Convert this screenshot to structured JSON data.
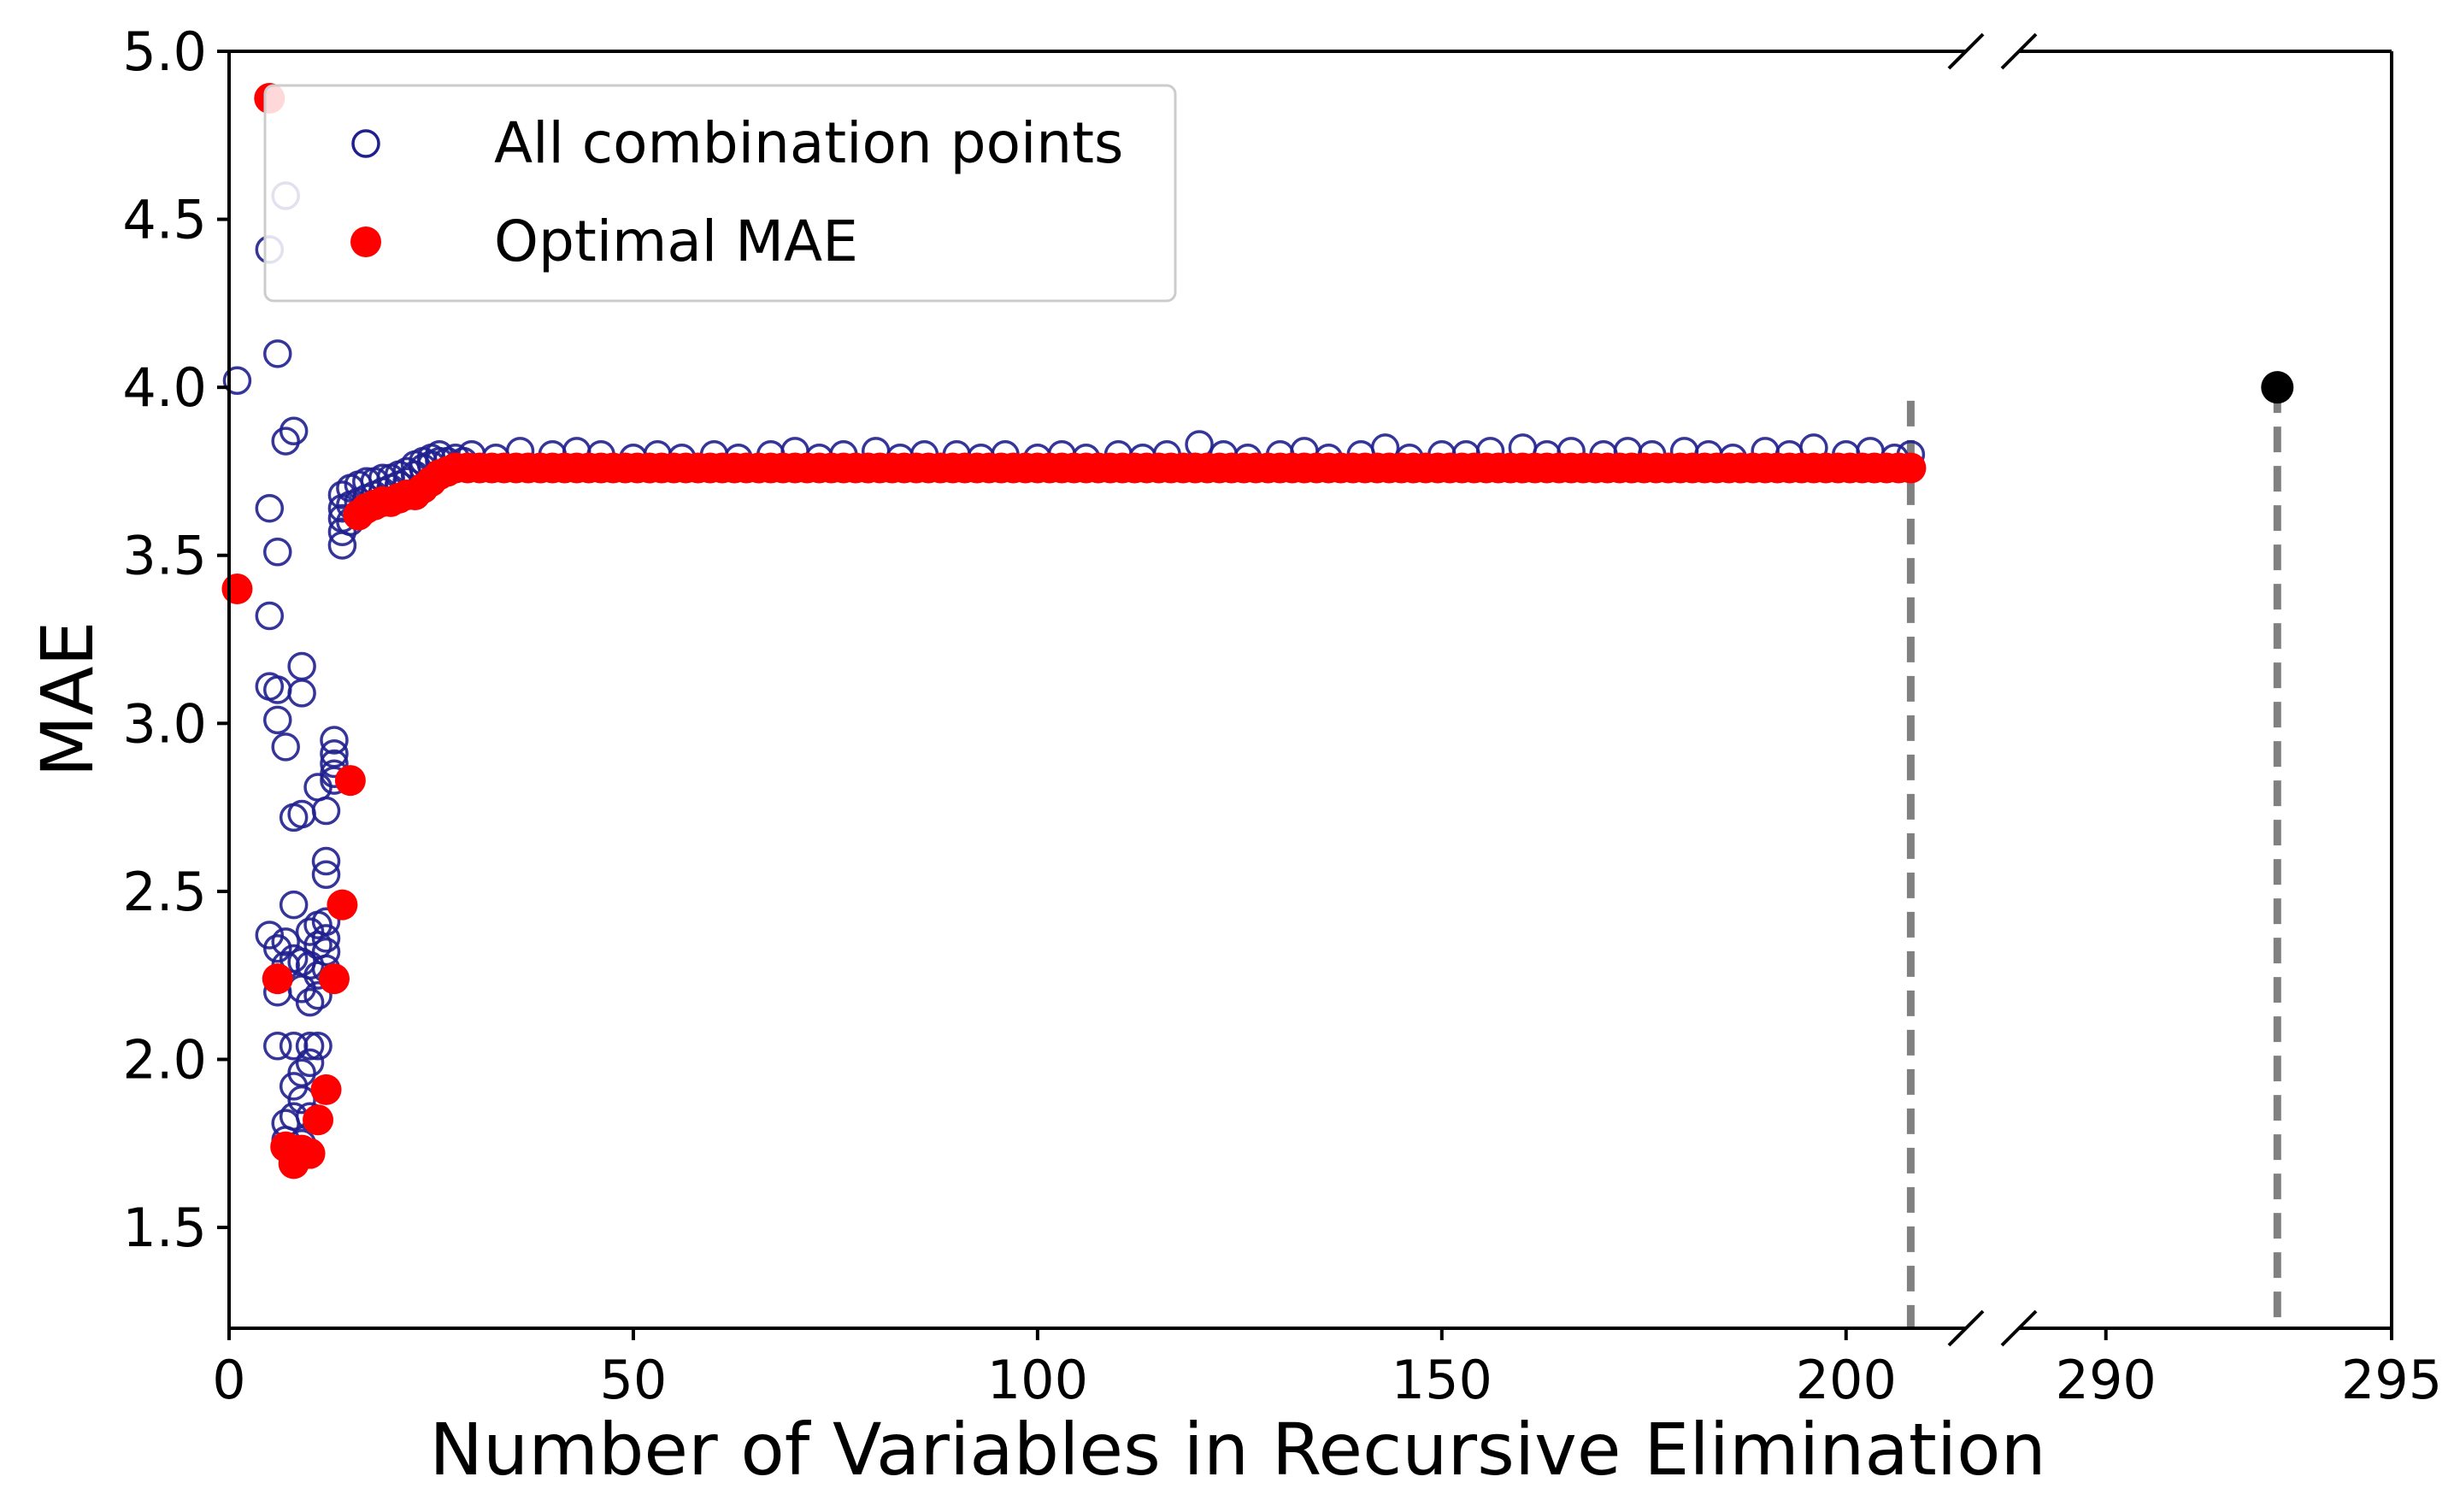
{
  "chart_data": {
    "type": "scatter",
    "title": "",
    "xlabel": "Number of Variables in Recursive Elimination",
    "ylabel": "MAE",
    "ylim": [
      1.2,
      5.0
    ],
    "broken_x_axis": true,
    "x_segments": [
      {
        "xlim": [
          0,
          218
        ],
        "ticks": [
          0,
          50,
          100,
          150,
          200
        ]
      },
      {
        "xlim": [
          288,
          295
        ],
        "ticks": [
          290,
          295
        ]
      }
    ],
    "y_ticks": [
      1.5,
      2.0,
      2.5,
      3.0,
      3.5,
      4.0,
      4.5,
      5.0
    ],
    "y_tick_labels": [
      "1.5",
      "2.0",
      "2.5",
      "3.0",
      "3.5",
      "4.0",
      "4.5",
      "5.0"
    ],
    "x_tick_labels": [
      "0",
      "50",
      "100",
      "150",
      "200",
      "290",
      "295"
    ],
    "legend_position": "top-left",
    "legend": [
      {
        "label": "All combination points",
        "marker": "hollow-circle",
        "color": "#1f1f8f"
      },
      {
        "label": "Optimal MAE",
        "marker": "filled-circle",
        "color": "#ff0000"
      }
    ],
    "series": [
      {
        "name": "All combination points",
        "color": "#1f1f8f",
        "marker": "hollow-circle",
        "points": [
          [
            1,
            4.02
          ],
          [
            5,
            4.41
          ],
          [
            5,
            3.64
          ],
          [
            5,
            3.32
          ],
          [
            5,
            3.11
          ],
          [
            5,
            2.37
          ],
          [
            6,
            4.1
          ],
          [
            6,
            3.51
          ],
          [
            6,
            3.1
          ],
          [
            6,
            3.01
          ],
          [
            6,
            2.33
          ],
          [
            6,
            2.2
          ],
          [
            6,
            2.04
          ],
          [
            7,
            4.57
          ],
          [
            7,
            3.84
          ],
          [
            7,
            2.93
          ],
          [
            7,
            2.35
          ],
          [
            7,
            2.28
          ],
          [
            7,
            1.81
          ],
          [
            7,
            1.76
          ],
          [
            8,
            3.87
          ],
          [
            8,
            2.72
          ],
          [
            8,
            2.46
          ],
          [
            8,
            2.3
          ],
          [
            8,
            2.04
          ],
          [
            8,
            1.92
          ],
          [
            8,
            1.83
          ],
          [
            8,
            1.72
          ],
          [
            9,
            3.17
          ],
          [
            9,
            3.09
          ],
          [
            9,
            2.73
          ],
          [
            9,
            2.29
          ],
          [
            9,
            2.21
          ],
          [
            9,
            1.96
          ],
          [
            9,
            1.88
          ],
          [
            9,
            1.75
          ],
          [
            10,
            2.38
          ],
          [
            10,
            2.28
          ],
          [
            10,
            2.17
          ],
          [
            10,
            2.04
          ],
          [
            10,
            1.99
          ],
          [
            10,
            1.83
          ],
          [
            11,
            2.81
          ],
          [
            11,
            2.4
          ],
          [
            11,
            2.34
          ],
          [
            11,
            2.25
          ],
          [
            11,
            2.19
          ],
          [
            11,
            2.04
          ],
          [
            12,
            2.74
          ],
          [
            12,
            2.59
          ],
          [
            12,
            2.55
          ],
          [
            12,
            2.41
          ],
          [
            12,
            2.36
          ],
          [
            12,
            2.32
          ],
          [
            12,
            2.27
          ],
          [
            13,
            2.95
          ],
          [
            13,
            2.91
          ],
          [
            13,
            2.88
          ],
          [
            13,
            2.85
          ],
          [
            13,
            2.83
          ],
          [
            14,
            3.53
          ],
          [
            14,
            3.57
          ],
          [
            14,
            3.61
          ],
          [
            14,
            3.64
          ],
          [
            14,
            3.68
          ],
          [
            15,
            3.6
          ],
          [
            15,
            3.65
          ],
          [
            15,
            3.7
          ],
          [
            16,
            3.66
          ],
          [
            16,
            3.71
          ],
          [
            17,
            3.67
          ],
          [
            17,
            3.72
          ],
          [
            18,
            3.68
          ],
          [
            18,
            3.72
          ],
          [
            19,
            3.69
          ],
          [
            19,
            3.73
          ],
          [
            20,
            3.7
          ],
          [
            20,
            3.73
          ],
          [
            21,
            3.71
          ],
          [
            21,
            3.74
          ],
          [
            22,
            3.72
          ],
          [
            22,
            3.75
          ],
          [
            23,
            3.74
          ],
          [
            23,
            3.77
          ],
          [
            24,
            3.76
          ],
          [
            24,
            3.78
          ],
          [
            25,
            3.77
          ],
          [
            25,
            3.79
          ],
          [
            26,
            3.78
          ],
          [
            26,
            3.8
          ],
          [
            27,
            3.78
          ],
          [
            28,
            3.79
          ],
          [
            29,
            3.78
          ],
          [
            30,
            3.8
          ],
          [
            33,
            3.79
          ],
          [
            36,
            3.81
          ],
          [
            40,
            3.8
          ],
          [
            43,
            3.81
          ],
          [
            46,
            3.8
          ],
          [
            50,
            3.79
          ],
          [
            53,
            3.8
          ],
          [
            56,
            3.79
          ],
          [
            60,
            3.8
          ],
          [
            63,
            3.79
          ],
          [
            67,
            3.8
          ],
          [
            70,
            3.81
          ],
          [
            73,
            3.79
          ],
          [
            76,
            3.8
          ],
          [
            80,
            3.81
          ],
          [
            83,
            3.79
          ],
          [
            86,
            3.8
          ],
          [
            90,
            3.8
          ],
          [
            93,
            3.79
          ],
          [
            96,
            3.8
          ],
          [
            100,
            3.79
          ],
          [
            103,
            3.8
          ],
          [
            106,
            3.79
          ],
          [
            110,
            3.8
          ],
          [
            113,
            3.79
          ],
          [
            116,
            3.8
          ],
          [
            120,
            3.83
          ],
          [
            123,
            3.8
          ],
          [
            126,
            3.79
          ],
          [
            130,
            3.8
          ],
          [
            133,
            3.81
          ],
          [
            136,
            3.79
          ],
          [
            140,
            3.8
          ],
          [
            143,
            3.82
          ],
          [
            146,
            3.79
          ],
          [
            150,
            3.8
          ],
          [
            153,
            3.8
          ],
          [
            156,
            3.81
          ],
          [
            160,
            3.82
          ],
          [
            163,
            3.8
          ],
          [
            166,
            3.81
          ],
          [
            170,
            3.8
          ],
          [
            173,
            3.81
          ],
          [
            176,
            3.8
          ],
          [
            180,
            3.81
          ],
          [
            183,
            3.8
          ],
          [
            186,
            3.79
          ],
          [
            190,
            3.81
          ],
          [
            193,
            3.8
          ],
          [
            196,
            3.82
          ],
          [
            200,
            3.8
          ],
          [
            203,
            3.81
          ],
          [
            206,
            3.79
          ],
          [
            208,
            3.8
          ]
        ]
      },
      {
        "name": "Optimal MAE",
        "color": "#ff0000",
        "marker": "filled-circle",
        "points": [
          [
            1,
            3.4
          ],
          [
            5,
            4.86
          ],
          [
            6,
            2.24
          ],
          [
            7,
            1.74
          ],
          [
            8,
            1.69
          ],
          [
            9,
            1.73
          ],
          [
            10,
            1.72
          ],
          [
            11,
            1.82
          ],
          [
            12,
            1.91
          ],
          [
            13,
            2.24
          ],
          [
            14,
            2.46
          ],
          [
            15,
            2.83
          ],
          [
            16,
            3.62
          ],
          [
            17,
            3.64
          ],
          [
            18,
            3.65
          ],
          [
            19,
            3.66
          ],
          [
            20,
            3.66
          ],
          [
            21,
            3.67
          ],
          [
            22,
            3.68
          ],
          [
            23,
            3.68
          ],
          [
            24,
            3.7
          ],
          [
            25,
            3.72
          ],
          [
            26,
            3.74
          ],
          [
            27,
            3.75
          ],
          [
            28,
            3.76
          ]
        ],
        "plateau": {
          "x_start": 28,
          "x_end": 208,
          "step": 1.5,
          "y": 3.76
        }
      },
      {
        "name": "",
        "color": "#000000",
        "marker": "filled-circle",
        "points": [
          [
            293,
            4.0
          ]
        ]
      }
    ],
    "annotations": [
      {
        "type": "vertical-dashed-line",
        "x": 208,
        "y_top": 3.96,
        "color": "#808080"
      },
      {
        "type": "vertical-dashed-line",
        "x": 293,
        "y_top": 4.0,
        "color": "#808080"
      }
    ]
  }
}
